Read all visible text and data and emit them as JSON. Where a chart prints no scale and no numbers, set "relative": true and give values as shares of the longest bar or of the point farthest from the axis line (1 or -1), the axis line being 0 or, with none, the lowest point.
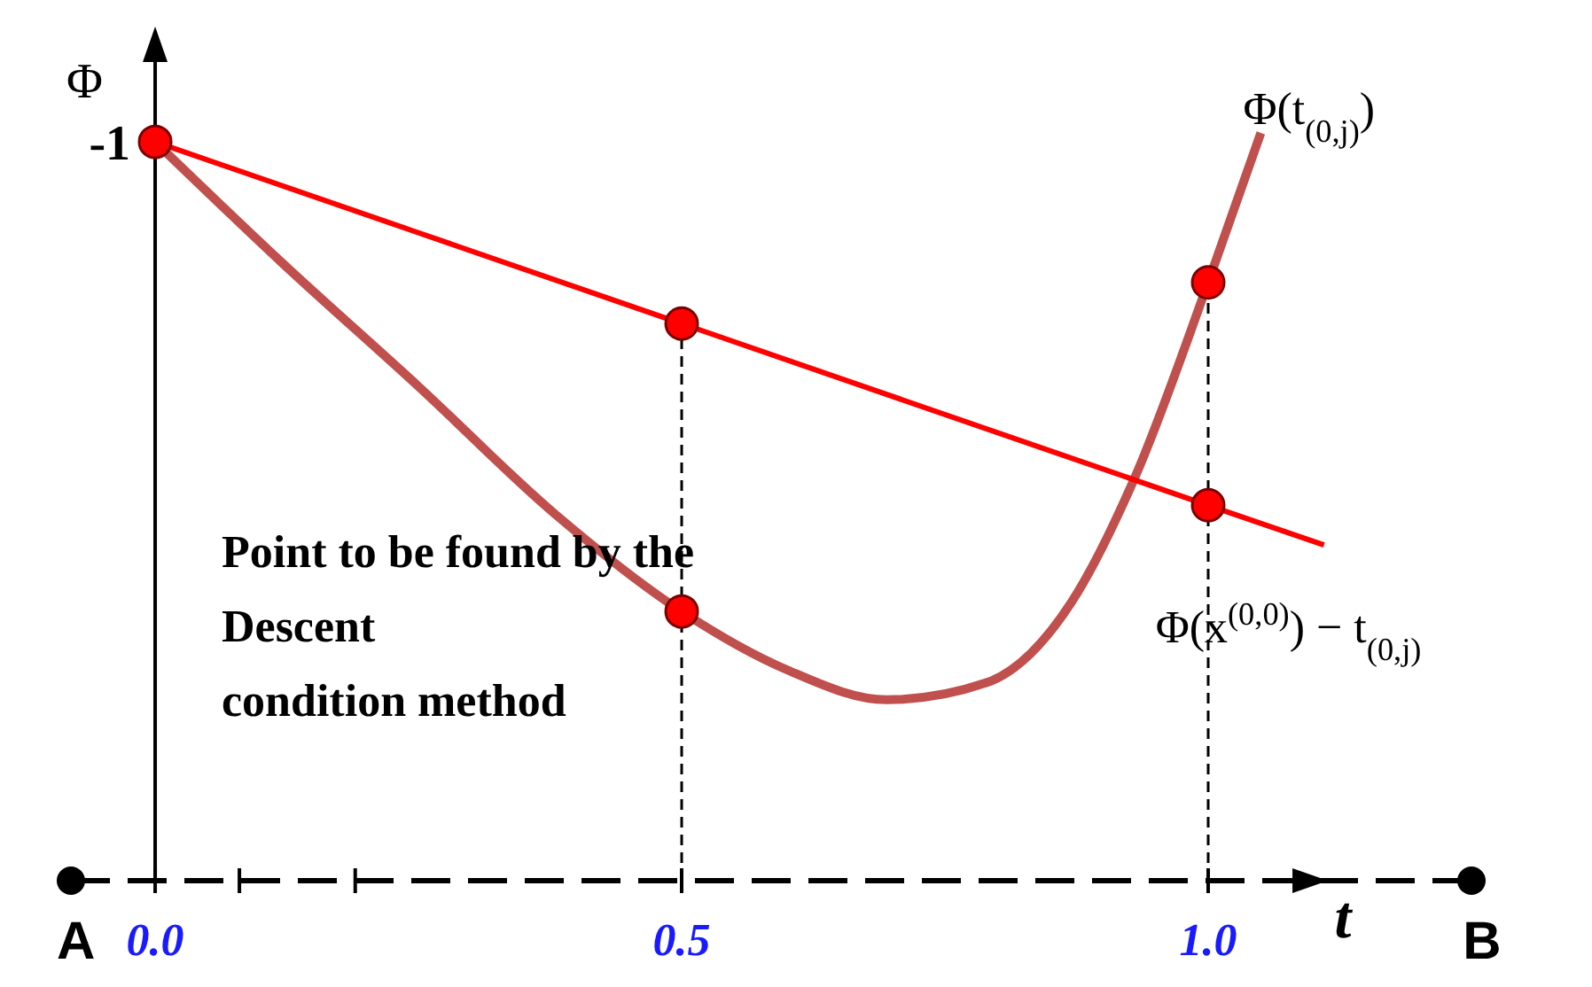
{
  "chart_data": {
    "type": "line",
    "relative": true,
    "xlabel": "t",
    "ylabel": "Φ",
    "xlim": [
      -0.08,
      1.25
    ],
    "xticks": [
      {
        "value": 0,
        "label": "0.0"
      },
      {
        "value": 0.08,
        "label": null
      },
      {
        "value": 0.19,
        "label": null
      },
      {
        "value": 0.5,
        "label": "0.5"
      },
      {
        "value": 1,
        "label": "1.0"
      }
    ],
    "series": [
      {
        "name": "Φ(t$_{(0,j)}$)",
        "color": "#c0504d",
        "x": [
          0,
          0.12,
          0.25,
          0.38,
          0.5,
          0.6,
          0.695,
          0.79,
          0.87,
          0.93,
          1.0,
          1.05
        ],
        "values": [
          0.988,
          0.827,
          0.661,
          0.49,
          0.36,
          0.282,
          0.242,
          0.265,
          0.372,
          0.538,
          0.8,
          1.0
        ]
      },
      {
        "name": "Φ(x$^{(0,0)}$) − t$_{(0,j)}$",
        "color": "#ff0000",
        "x": [
          0,
          0.5,
          1.0,
          1.11
        ],
        "values": [
          0.988,
          0.745,
          0.502,
          0.449
        ]
      },
      {
        "type": "scatter",
        "color": "#ff0000",
        "marker": "circle",
        "x": [
          0,
          0.5,
          1.0,
          0.5,
          1.0
        ],
        "values": [
          0.988,
          0.745,
          0.502,
          0.36,
          0.8
        ]
      }
    ],
    "ref_lines": [
      {
        "axis": "x",
        "value": 0.5,
        "line_style": "dashed",
        "color": "#000000"
      },
      {
        "axis": "x",
        "value": 1.0,
        "line_style": "dashed",
        "color": "#000000"
      }
    ],
    "annotations": [
      "-1",
      "A",
      "B",
      "Point to be found by the Descent condition method"
    ],
    "line_style": "solid"
  }
}
